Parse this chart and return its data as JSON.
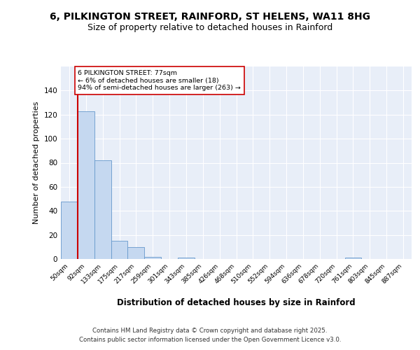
{
  "title": "6, PILKINGTON STREET, RAINFORD, ST HELENS, WA11 8HG",
  "subtitle": "Size of property relative to detached houses in Rainford",
  "xlabel": "Distribution of detached houses by size in Rainford",
  "ylabel": "Number of detached properties",
  "bar_values": [
    48,
    123,
    82,
    15,
    10,
    2,
    0,
    1,
    0,
    0,
    0,
    0,
    0,
    0,
    0,
    0,
    0,
    1,
    0,
    0,
    0
  ],
  "bin_labels": [
    "50sqm",
    "92sqm",
    "133sqm",
    "175sqm",
    "217sqm",
    "259sqm",
    "301sqm",
    "343sqm",
    "385sqm",
    "426sqm",
    "468sqm",
    "510sqm",
    "552sqm",
    "594sqm",
    "636sqm",
    "678sqm",
    "720sqm",
    "761sqm",
    "803sqm",
    "845sqm",
    "887sqm"
  ],
  "bar_color": "#c5d8f0",
  "bar_edge_color": "#6699cc",
  "bg_color": "#e8eef8",
  "grid_color": "#ffffff",
  "vline_color": "#cc0000",
  "vline_x": 0.5,
  "annotation_text": "6 PILKINGTON STREET: 77sqm\n← 6% of detached houses are smaller (18)\n94% of semi-detached houses are larger (263) →",
  "annotation_box_color": "#ffffff",
  "annotation_box_edge": "#cc0000",
  "ylim": [
    0,
    160
  ],
  "yticks": [
    0,
    20,
    40,
    60,
    80,
    100,
    120,
    140,
    160
  ],
  "footer_line1": "Contains HM Land Registry data © Crown copyright and database right 2025.",
  "footer_line2": "Contains public sector information licensed under the Open Government Licence v3.0."
}
